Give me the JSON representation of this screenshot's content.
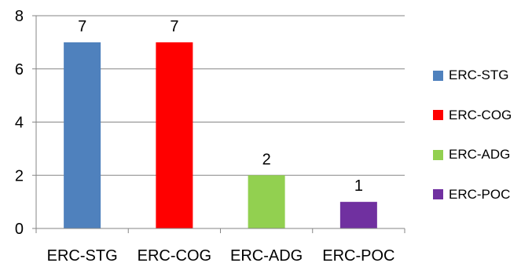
{
  "chart_data": {
    "type": "bar",
    "categories": [
      "ERC-STG",
      "ERC-COG",
      "ERC-ADG",
      "ERC-POC"
    ],
    "values": [
      7,
      7,
      2,
      1
    ],
    "data_labels": [
      "7",
      "7",
      "2",
      "1"
    ],
    "colors": [
      "#4F81BD",
      "#FF0000",
      "#92D050",
      "#7030A0"
    ],
    "title": "",
    "xlabel": "",
    "ylabel": "",
    "ylim": [
      0,
      8
    ],
    "yticks": [
      "0",
      "2",
      "4",
      "6",
      "8"
    ],
    "grid": "horizontal",
    "legend_position": "right"
  },
  "legend": {
    "items": [
      {
        "label": "ERC-STG",
        "color": "#4F81BD"
      },
      {
        "label": "ERC-COG",
        "color": "#FF0000"
      },
      {
        "label": "ERC-ADG",
        "color": "#92D050"
      },
      {
        "label": "ERC-POC",
        "color": "#7030A0"
      }
    ]
  }
}
